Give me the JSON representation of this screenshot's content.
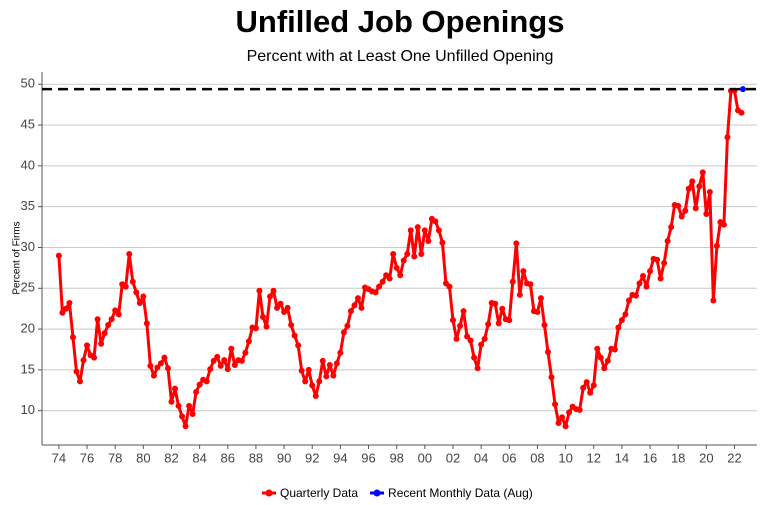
{
  "chart_data": {
    "type": "line",
    "title": "Unfilled Job Openings",
    "subtitle": "Percent with at Least One Unfilled Opening",
    "y_label": "Percent of Firms",
    "xlim": [
      1972.8,
      2023.6
    ],
    "ylim": [
      5.8,
      51.5
    ],
    "yticks": [
      10,
      15,
      20,
      25,
      30,
      35,
      40,
      45,
      50
    ],
    "xticks": [
      {
        "value": 1974,
        "label": "74"
      },
      {
        "value": 1976,
        "label": "76"
      },
      {
        "value": 1978,
        "label": "78"
      },
      {
        "value": 1980,
        "label": "80"
      },
      {
        "value": 1982,
        "label": "82"
      },
      {
        "value": 1984,
        "label": "84"
      },
      {
        "value": 1986,
        "label": "86"
      },
      {
        "value": 1988,
        "label": "88"
      },
      {
        "value": 1990,
        "label": "90"
      },
      {
        "value": 1992,
        "label": "92"
      },
      {
        "value": 1994,
        "label": "94"
      },
      {
        "value": 1996,
        "label": "96"
      },
      {
        "value": 1998,
        "label": "98"
      },
      {
        "value": 2000,
        "label": "00"
      },
      {
        "value": 2002,
        "label": "02"
      },
      {
        "value": 2004,
        "label": "04"
      },
      {
        "value": 2006,
        "label": "06"
      },
      {
        "value": 2008,
        "label": "08"
      },
      {
        "value": 2010,
        "label": "10"
      },
      {
        "value": 2012,
        "label": "12"
      },
      {
        "value": 2014,
        "label": "14"
      },
      {
        "value": 2016,
        "label": "16"
      },
      {
        "value": 2018,
        "label": "18"
      },
      {
        "value": 2020,
        "label": "20"
      },
      {
        "value": 2022,
        "label": "22"
      }
    ],
    "grid": true,
    "legend": "bottom",
    "series": [
      {
        "name": "Quarterly Data",
        "color": "#ff0000",
        "x": [
          1974,
          1974.25,
          1974.5,
          1974.75,
          1975,
          1975.25,
          1975.5,
          1975.75,
          1976,
          1976.25,
          1976.5,
          1976.75,
          1977,
          1977.25,
          1977.5,
          1977.75,
          1978,
          1978.25,
          1978.5,
          1978.75,
          1979,
          1979.25,
          1979.5,
          1979.75,
          1980,
          1980.25,
          1980.5,
          1980.75,
          1981,
          1981.25,
          1981.5,
          1981.75,
          1982,
          1982.25,
          1982.5,
          1982.75,
          1983,
          1983.25,
          1983.5,
          1983.75,
          1984,
          1984.25,
          1984.5,
          1984.75,
          1985,
          1985.25,
          1985.5,
          1985.75,
          1986,
          1986.25,
          1986.5,
          1986.75,
          1987,
          1987.25,
          1987.5,
          1987.75,
          1988,
          1988.25,
          1988.5,
          1988.75,
          1989,
          1989.25,
          1989.5,
          1989.75,
          1990,
          1990.25,
          1990.5,
          1990.75,
          1991,
          1991.25,
          1991.5,
          1991.75,
          1992,
          1992.25,
          1992.5,
          1992.75,
          1993,
          1993.25,
          1993.5,
          1993.75,
          1994,
          1994.25,
          1994.5,
          1994.75,
          1995,
          1995.25,
          1995.5,
          1995.75,
          1996,
          1996.25,
          1996.5,
          1996.75,
          1997,
          1997.25,
          1997.5,
          1997.75,
          1998,
          1998.25,
          1998.5,
          1998.75,
          1999,
          1999.25,
          1999.5,
          1999.75,
          2000,
          2000.25,
          2000.5,
          2000.75,
          2001,
          2001.25,
          2001.5,
          2001.75,
          2002,
          2002.25,
          2002.5,
          2002.75,
          2003,
          2003.25,
          2003.5,
          2003.75,
          2004,
          2004.25,
          2004.5,
          2004.75,
          2005,
          2005.25,
          2005.5,
          2005.75,
          2006,
          2006.25,
          2006.5,
          2006.75,
          2007,
          2007.25,
          2007.5,
          2007.75,
          2008,
          2008.25,
          2008.5,
          2008.75,
          2009,
          2009.25,
          2009.5,
          2009.75,
          2010,
          2010.25,
          2010.5,
          2010.75,
          2011,
          2011.25,
          2011.5,
          2011.75,
          2012,
          2012.25,
          2012.5,
          2012.75,
          2013,
          2013.25,
          2013.5,
          2013.75,
          2014,
          2014.25,
          2014.5,
          2014.75,
          2015,
          2015.25,
          2015.5,
          2015.75,
          2016,
          2016.25,
          2016.5,
          2016.75,
          2017,
          2017.25,
          2017.5,
          2017.75,
          2018,
          2018.25,
          2018.5,
          2018.75,
          2019,
          2019.25,
          2019.5,
          2019.75,
          2020,
          2020.25,
          2020.5,
          2020.75,
          2021,
          2021.25,
          2021.5,
          2021.75,
          2022,
          2022.25,
          2022.5
        ],
        "values": [
          29,
          22,
          22.5,
          23.2,
          19,
          14.8,
          13.6,
          16.2,
          18,
          16.8,
          16.5,
          21.2,
          18.2,
          19.5,
          20.5,
          21.2,
          22.3,
          21.8,
          25.5,
          25.2,
          29.2,
          25.8,
          24.5,
          23.2,
          24,
          20.7,
          15.5,
          14.3,
          15.3,
          15.8,
          16.5,
          15.2,
          11.1,
          12.7,
          10.6,
          9.3,
          8.1,
          10.6,
          9.6,
          12.3,
          13.2,
          13.8,
          13.6,
          15.1,
          16.1,
          16.6,
          15.5,
          16.2,
          15.1,
          17.6,
          15.6,
          16.2,
          16.1,
          17.1,
          18.5,
          20.2,
          20.1,
          24.7,
          21.5,
          20.3,
          24,
          24.7,
          22.6,
          23.1,
          22.1,
          22.6,
          20.5,
          19.2,
          18,
          14.9,
          13.6,
          15,
          13.1,
          11.8,
          13.6,
          16.1,
          14.2,
          15.6,
          14.3,
          15.8,
          17.1,
          19.6,
          20.4,
          22.2,
          22.9,
          23.8,
          22.6,
          25.1,
          24.9,
          24.6,
          24.5,
          25.2,
          25.8,
          26.6,
          26.2,
          29.2,
          27.5,
          26.6,
          28.4,
          29.2,
          32.1,
          28.9,
          32.5,
          29.2,
          32.1,
          30.8,
          33.5,
          33.2,
          32.1,
          30.6,
          25.6,
          25.2,
          21.1,
          18.8,
          20.4,
          22.2,
          19.1,
          18.6,
          16.5,
          15.2,
          18.1,
          18.8,
          20.6,
          23.2,
          23.1,
          20.7,
          22.5,
          21.2,
          21.1,
          25.8,
          30.5,
          24.2,
          27.1,
          25.6,
          25.5,
          22.2,
          22.1,
          23.8,
          20.5,
          17.2,
          14.1,
          10.8,
          8.5,
          9.2,
          8.1,
          9.8,
          10.5,
          10.2,
          10.1,
          12.8,
          13.5,
          12.2,
          13.1,
          17.6,
          16.5,
          15.2,
          16.1,
          17.6,
          17.5,
          20.2,
          21.1,
          21.8,
          23.5,
          24.2,
          24.1,
          25.6,
          26.5,
          25.2,
          27.1,
          28.6,
          28.5,
          26.2,
          28.1,
          30.8,
          32.5,
          35.2,
          35.1,
          33.8,
          34.5,
          37.2,
          38.1,
          34.8,
          37.5,
          39.2,
          34.1,
          36.8,
          23.5,
          30.2,
          33.1,
          32.8,
          43.5,
          49.2,
          49.2,
          46.8,
          46.5
        ]
      },
      {
        "name": "Recent Monthly Data (Aug)",
        "color": "#0000ff",
        "x": [
          2022.6
        ],
        "values": [
          49.4
        ]
      }
    ]
  }
}
